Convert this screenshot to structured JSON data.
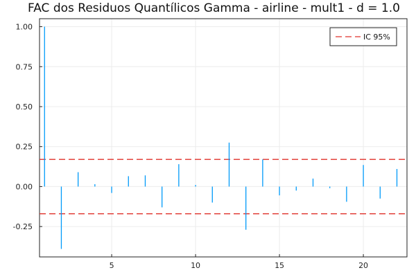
{
  "chart_data": {
    "type": "bar",
    "title": "FAC dos Residuos Quantílicos Gamma - airline - mult1 - d = 1.0",
    "xlabel": "",
    "ylabel": "",
    "xlim": [
      0.7,
      22.6
    ],
    "ylim": [
      -0.44,
      1.05
    ],
    "x_ticks": [
      5,
      10,
      15,
      20
    ],
    "x_tick_labels": [
      "5",
      "10",
      "15",
      "20"
    ],
    "y_ticks": [
      -0.25,
      0,
      0.25,
      0.5,
      0.75,
      1.0
    ],
    "y_tick_labels": [
      "-0.25",
      "0.00",
      "0.25",
      "0.50",
      "0.75",
      "1.00"
    ],
    "grid": true,
    "legend_position": "top-right",
    "bar_color": "#009af9",
    "ci_color": "#e0302a",
    "lags": [
      1,
      2,
      3,
      4,
      5,
      6,
      7,
      8,
      9,
      10,
      11,
      12,
      13,
      14,
      15,
      16,
      17,
      18,
      19,
      20,
      21,
      22
    ],
    "values": [
      1.0,
      -0.39,
      0.09,
      0.015,
      -0.04,
      0.065,
      0.07,
      -0.13,
      0.14,
      0.01,
      -0.1,
      0.275,
      -0.27,
      0.17,
      -0.055,
      -0.025,
      0.05,
      -0.01,
      -0.095,
      0.135,
      -0.075,
      0.11
    ],
    "confidence_band": {
      "name": "IC 95%",
      "upper": 0.17,
      "lower": -0.17
    }
  }
}
